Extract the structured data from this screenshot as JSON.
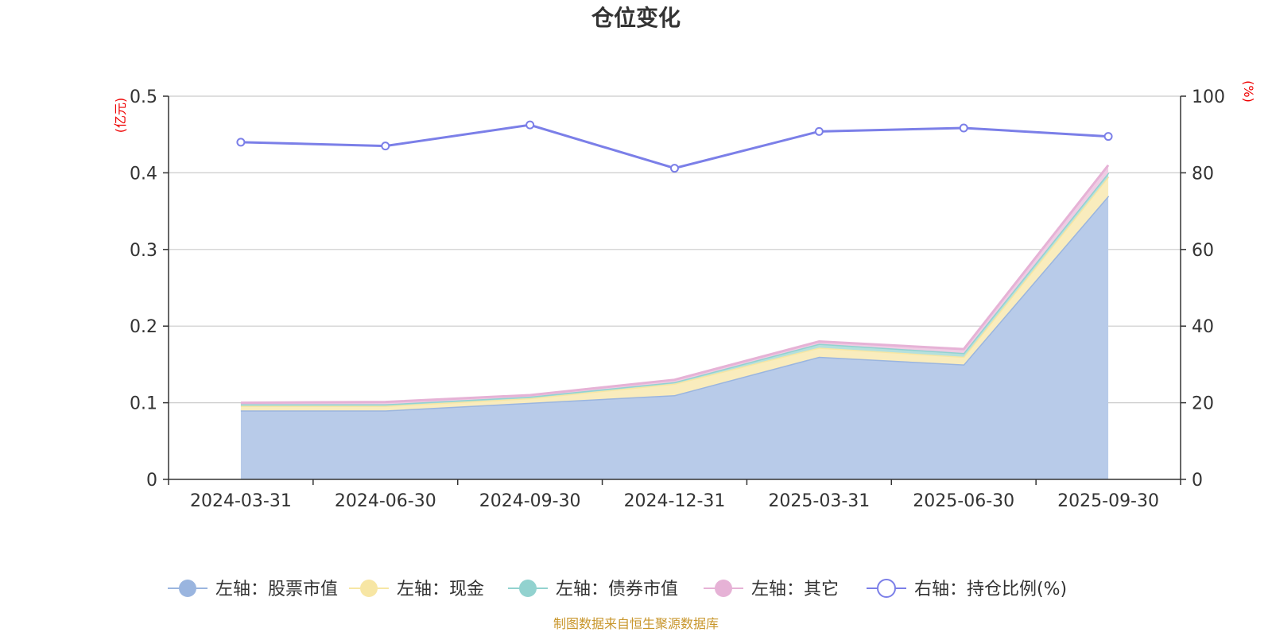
{
  "title": "仓位变化",
  "source_note": "制图数据来自恒生聚源数据库",
  "chart_data": {
    "type": "area",
    "categories": [
      "2024-03-31",
      "2024-06-30",
      "2024-09-30",
      "2024-12-31",
      "2025-03-31",
      "2025-06-30",
      "2025-09-30"
    ],
    "left_axis": {
      "unit": "(亿元)",
      "ylim": [
        0,
        0.5
      ],
      "ticks": [
        "0",
        "0.1",
        "0.2",
        "0.3",
        "0.4",
        "0.5"
      ],
      "stacked": true
    },
    "right_axis": {
      "unit": "(%)",
      "ylim": [
        0,
        100
      ],
      "ticks": [
        "0",
        "20",
        "40",
        "60",
        "80",
        "100"
      ]
    },
    "grid": true,
    "legend_position": "bottom",
    "series": [
      {
        "name": "左轴：股票市值",
        "type": "area",
        "axis": "left",
        "color": "#9ab5df",
        "fill": "#b8cbe9",
        "values": [
          0.09,
          0.09,
          0.1,
          0.11,
          0.16,
          0.15,
          0.37
        ]
      },
      {
        "name": "左轴：现金",
        "type": "area",
        "axis": "left",
        "color": "#f7e6a4",
        "fill": "#f9ecbd",
        "values": [
          0.006,
          0.006,
          0.006,
          0.015,
          0.012,
          0.01,
          0.025
        ]
      },
      {
        "name": "左轴：债券市值",
        "type": "area",
        "axis": "left",
        "color": "#92d2cf",
        "fill": "#b4e0dd",
        "values": [
          0.002,
          0.002,
          0.002,
          0.002,
          0.005,
          0.005,
          0.005
        ]
      },
      {
        "name": "左轴：其它",
        "type": "area",
        "axis": "left",
        "color": "#e6b2d6",
        "fill": "#efcce4",
        "values": [
          0.002,
          0.003,
          0.002,
          0.003,
          0.003,
          0.005,
          0.01
        ]
      },
      {
        "name": "右轴：持仓比例(%)",
        "type": "line",
        "axis": "right",
        "color": "#7b7fe8",
        "values": [
          88,
          87,
          92.5,
          81.2,
          90.8,
          91.7,
          89.5
        ]
      }
    ]
  }
}
